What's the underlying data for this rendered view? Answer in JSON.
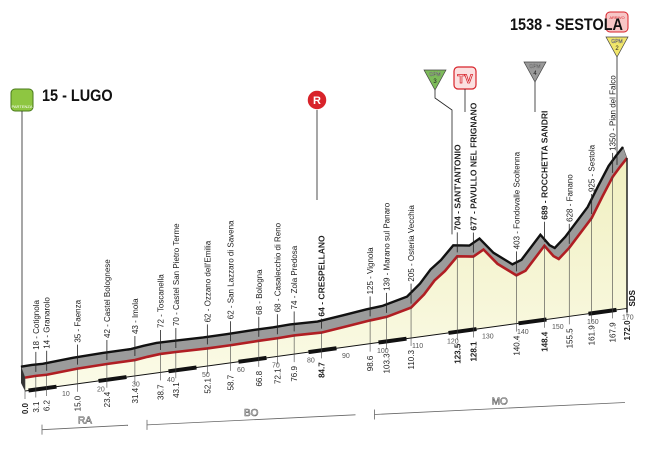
{
  "start": {
    "label": "15 - LUGO",
    "badge": "PARTENZA"
  },
  "finish": {
    "label": "1538 - SESTOLA",
    "badge": "ARRIVO"
  },
  "markers": [
    {
      "type": "gpm",
      "text": "GPM",
      "num": "3",
      "km": 123.5,
      "color": "#7dbb5a"
    },
    {
      "type": "tv",
      "text": "TV",
      "km": 128.1,
      "color": "#d8232a"
    },
    {
      "type": "gpm",
      "text": "GPM",
      "num": "4",
      "km": 148.4,
      "color": "#9a9a9a"
    },
    {
      "type": "gpm",
      "text": "GPM",
      "num": "2",
      "km": 172.0,
      "color": "#f1e66a"
    },
    {
      "type": "ravito",
      "text": "R",
      "km": 84.7,
      "color": "#d8232a"
    }
  ],
  "chart_data": {
    "type": "area",
    "xlabel": "",
    "ylabel": "",
    "xlim": [
      0,
      172
    ],
    "profile": [
      [
        0,
        15
      ],
      [
        3.1,
        18
      ],
      [
        6.2,
        14
      ],
      [
        15,
        35
      ],
      [
        23.4,
        42
      ],
      [
        31.4,
        43
      ],
      [
        35,
        60
      ],
      [
        38.7,
        72
      ],
      [
        43.1,
        70
      ],
      [
        52.1,
        62
      ],
      [
        58.7,
        62
      ],
      [
        66.8,
        68
      ],
      [
        72.1,
        68
      ],
      [
        76.9,
        74
      ],
      [
        84.7,
        64
      ],
      [
        92,
        95
      ],
      [
        98.6,
        125
      ],
      [
        103.3,
        139
      ],
      [
        110.3,
        205
      ],
      [
        114,
        330
      ],
      [
        117,
        470
      ],
      [
        120,
        560
      ],
      [
        123.5,
        704
      ],
      [
        126,
        690
      ],
      [
        128.1,
        677
      ],
      [
        131,
        740
      ],
      [
        135,
        560
      ],
      [
        140.4,
        403
      ],
      [
        143,
        440
      ],
      [
        148.4,
        689
      ],
      [
        151,
        560
      ],
      [
        152.5,
        520
      ],
      [
        155.5,
        628
      ],
      [
        161.9,
        925
      ],
      [
        165,
        1150
      ],
      [
        167.9,
        1350
      ],
      [
        170,
        1450
      ],
      [
        172,
        1538
      ]
    ],
    "km_ticks": [
      10,
      20,
      30,
      40,
      50,
      60,
      70,
      80,
      90,
      100,
      110,
      120,
      130,
      140,
      150,
      160,
      170
    ],
    "places": [
      {
        "km": 3.1,
        "label": "18 - Cotignola",
        "bold": false
      },
      {
        "km": 6.2,
        "label": "14 - Granarolo",
        "bold": false
      },
      {
        "km": 15.0,
        "label": "35 - Faenza",
        "bold": false
      },
      {
        "km": 23.4,
        "label": "42 - Castel Bolognese",
        "bold": false
      },
      {
        "km": 31.4,
        "label": "43 - Imola",
        "bold": false
      },
      {
        "km": 38.7,
        "label": "72 - Toscanella",
        "bold": false
      },
      {
        "km": 43.1,
        "label": "70 - Castel San Pietro Terme",
        "bold": false
      },
      {
        "km": 52.1,
        "label": "62 - Ozzano dell'Emilia",
        "bold": false
      },
      {
        "km": 58.7,
        "label": "62 - San Lazzaro di Savena",
        "bold": false
      },
      {
        "km": 66.8,
        "label": "68 - Bologna",
        "bold": false
      },
      {
        "km": 72.1,
        "label": "68 - Casalecchio di Reno",
        "bold": false
      },
      {
        "km": 76.9,
        "label": "74 - Zola Predosa",
        "bold": false
      },
      {
        "km": 84.7,
        "label": "64 - CRESPELLANO",
        "bold": true
      },
      {
        "km": 98.6,
        "label": "125 - Vignola",
        "bold": false
      },
      {
        "km": 103.3,
        "label": "139 - Marano sul Panaro",
        "bold": false
      },
      {
        "km": 110.3,
        "label": "205 - Osteria Vecchia",
        "bold": false
      },
      {
        "km": 123.5,
        "label": "704 - SANT'ANTONIO",
        "bold": true
      },
      {
        "km": 128.1,
        "label": "677 - PAVULLO NEL FRIGNANO",
        "bold": true
      },
      {
        "km": 140.4,
        "label": "403 - Fondovalle Scoltenna",
        "bold": false
      },
      {
        "km": 148.4,
        "label": "689 - ROCCHETTA SANDRI",
        "bold": true
      },
      {
        "km": 155.5,
        "label": "628 - Fanano",
        "bold": false
      },
      {
        "km": 161.9,
        "label": "925 - Sestola",
        "bold": false
      },
      {
        "km": 167.9,
        "label": "1350 - Pian del Falco",
        "bold": false
      }
    ],
    "km_labels": [
      {
        "km": 0.0,
        "label": "0.0",
        "bold": true
      },
      {
        "km": 3.1,
        "label": "3.1"
      },
      {
        "km": 6.2,
        "label": "6.2"
      },
      {
        "km": 15.0,
        "label": "15.0"
      },
      {
        "km": 23.4,
        "label": "23.4"
      },
      {
        "km": 31.4,
        "label": "31.4"
      },
      {
        "km": 38.7,
        "label": "38.7"
      },
      {
        "km": 43.1,
        "label": "43.1"
      },
      {
        "km": 52.1,
        "label": "52.1"
      },
      {
        "km": 58.7,
        "label": "58.7"
      },
      {
        "km": 66.8,
        "label": "66.8"
      },
      {
        "km": 72.1,
        "label": "72.1"
      },
      {
        "km": 76.9,
        "label": "76.9"
      },
      {
        "km": 84.7,
        "label": "84.7",
        "bold": true
      },
      {
        "km": 98.6,
        "label": "98.6"
      },
      {
        "km": 103.3,
        "label": "103.3"
      },
      {
        "km": 110.3,
        "label": "110.3"
      },
      {
        "km": 123.5,
        "label": "123.5",
        "bold": true
      },
      {
        "km": 128.1,
        "label": "128.1",
        "bold": true
      },
      {
        "km": 140.4,
        "label": "140.4"
      },
      {
        "km": 148.4,
        "label": "148.4",
        "bold": true
      },
      {
        "km": 155.5,
        "label": "155.5"
      },
      {
        "km": 161.9,
        "label": "161.9"
      },
      {
        "km": 167.9,
        "label": "167.9"
      },
      {
        "km": 172.0,
        "label": "172.0",
        "bold": true
      }
    ],
    "provinces": [
      {
        "label": "RA",
        "from": 2,
        "to": 30
      },
      {
        "label": "BO",
        "from": 32,
        "to": 95
      },
      {
        "label": "MO",
        "from": 97,
        "to": 172
      }
    ],
    "finish_note": "SDS"
  },
  "colors": {
    "profile_line": "#b01e23",
    "relief": "#9b9b9b",
    "fill": "#fbfbe8"
  }
}
